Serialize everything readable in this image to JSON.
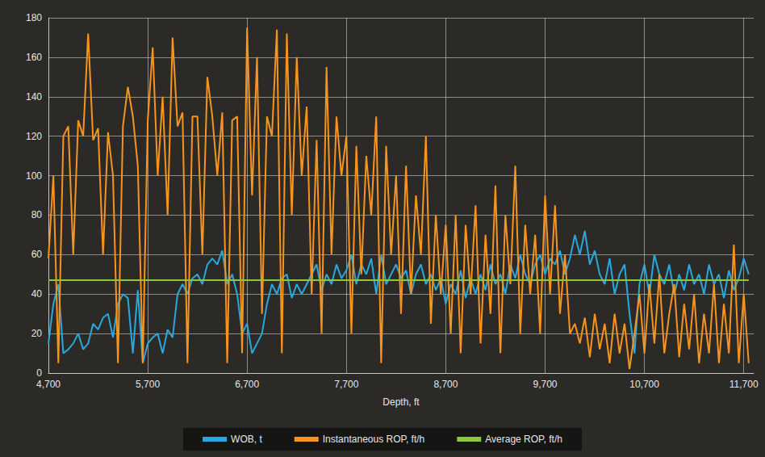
{
  "chart_data": {
    "type": "line",
    "x_label": "Depth, ft",
    "xlim": [
      4700,
      11800
    ],
    "xticks": [
      {
        "value": 4700,
        "label": "4,700"
      },
      {
        "value": 5700,
        "label": "5,700"
      },
      {
        "value": 6700,
        "label": "6,700"
      },
      {
        "value": 7700,
        "label": "7,700"
      },
      {
        "value": 8700,
        "label": "8,700"
      },
      {
        "value": 9700,
        "label": "9,700"
      },
      {
        "value": 10700,
        "label": "10,700"
      },
      {
        "value": 11700,
        "label": "11,700"
      }
    ],
    "ylim": [
      0,
      180
    ],
    "yticks": [
      0,
      20,
      40,
      60,
      80,
      100,
      120,
      140,
      160,
      180
    ],
    "grid": true,
    "legend": "bottom",
    "x": [
      4700,
      4750,
      4800,
      4850,
      4900,
      4950,
      5000,
      5050,
      5100,
      5150,
      5200,
      5250,
      5300,
      5350,
      5400,
      5450,
      5500,
      5550,
      5600,
      5650,
      5700,
      5750,
      5800,
      5850,
      5900,
      5950,
      6000,
      6050,
      6100,
      6150,
      6200,
      6250,
      6300,
      6350,
      6400,
      6450,
      6500,
      6550,
      6600,
      6650,
      6700,
      6750,
      6800,
      6850,
      6900,
      6950,
      7000,
      7050,
      7100,
      7150,
      7200,
      7250,
      7300,
      7350,
      7400,
      7450,
      7500,
      7550,
      7600,
      7650,
      7700,
      7750,
      7800,
      7850,
      7900,
      7950,
      8000,
      8050,
      8100,
      8150,
      8200,
      8250,
      8300,
      8350,
      8400,
      8450,
      8500,
      8550,
      8600,
      8650,
      8700,
      8750,
      8800,
      8850,
      8900,
      8950,
      9000,
      9050,
      9100,
      9150,
      9200,
      9250,
      9300,
      9350,
      9400,
      9450,
      9500,
      9550,
      9600,
      9650,
      9700,
      9750,
      9800,
      9850,
      9900,
      9950,
      10000,
      10050,
      10100,
      10150,
      10200,
      10250,
      10300,
      10350,
      10400,
      10450,
      10500,
      10550,
      10600,
      10650,
      10700,
      10750,
      10800,
      10850,
      10900,
      10950,
      11000,
      11050,
      11100,
      11150,
      11200,
      11250,
      11300,
      11350,
      11400,
      11450,
      11500,
      11550,
      11600,
      11650,
      11700,
      11750
    ],
    "series": [
      {
        "name": "WOB, t",
        "color": "#29a8e0",
        "values": [
          15,
          35,
          45,
          10,
          12,
          15,
          20,
          12,
          15,
          25,
          22,
          28,
          30,
          18,
          35,
          40,
          38,
          10,
          42,
          5,
          15,
          18,
          20,
          10,
          22,
          18,
          40,
          45,
          40,
          48,
          50,
          45,
          55,
          58,
          55,
          62,
          45,
          50,
          40,
          20,
          25,
          10,
          15,
          20,
          35,
          45,
          40,
          48,
          50,
          38,
          45,
          40,
          45,
          50,
          55,
          42,
          50,
          45,
          55,
          48,
          52,
          60,
          45,
          55,
          50,
          58,
          40,
          60,
          45,
          50,
          55,
          48,
          52,
          40,
          50,
          55,
          45,
          50,
          42,
          48,
          35,
          45,
          40,
          52,
          38,
          48,
          40,
          50,
          42,
          55,
          45,
          50,
          40,
          55,
          48,
          60,
          50,
          45,
          55,
          60,
          50,
          58,
          55,
          62,
          50,
          58,
          70,
          60,
          72,
          55,
          62,
          50,
          45,
          58,
          40,
          50,
          55,
          30,
          10,
          45,
          55,
          40,
          60,
          50,
          45,
          55,
          40,
          50,
          42,
          55,
          45,
          50,
          40,
          55,
          45,
          50,
          38,
          52,
          42,
          48,
          58,
          50
        ]
      },
      {
        "name": "Instantaneous ROP, ft/h",
        "color": "#f7941d",
        "values": [
          58,
          100,
          5,
          120,
          125,
          60,
          128,
          120,
          172,
          118,
          124,
          60,
          122,
          100,
          5,
          125,
          145,
          130,
          105,
          5,
          128,
          165,
          100,
          140,
          80,
          170,
          125,
          132,
          5,
          130,
          130,
          60,
          150,
          130,
          100,
          132,
          5,
          128,
          130,
          10,
          175,
          90,
          160,
          30,
          130,
          120,
          174,
          10,
          172,
          80,
          160,
          100,
          135,
          40,
          118,
          20,
          155,
          60,
          130,
          100,
          120,
          20,
          115,
          50,
          110,
          80,
          130,
          5,
          115,
          60,
          100,
          30,
          105,
          40,
          90,
          60,
          120,
          25,
          80,
          40,
          75,
          20,
          80,
          10,
          75,
          40,
          85,
          15,
          70,
          30,
          95,
          10,
          80,
          45,
          105,
          20,
          75,
          40,
          70,
          20,
          90,
          40,
          85,
          30,
          60,
          20,
          25,
          15,
          28,
          8,
          30,
          12,
          25,
          5,
          30,
          10,
          25,
          2,
          20,
          40,
          10,
          45,
          15,
          50,
          10,
          30,
          45,
          8,
          35,
          12,
          40,
          5,
          30,
          10,
          45,
          5,
          35,
          10,
          65,
          5,
          40,
          5
        ]
      },
      {
        "name": "Average ROP, ft/h",
        "color": "#8dc63f",
        "x": [
          4700,
          11750
        ],
        "values": [
          47,
          47
        ]
      }
    ]
  }
}
